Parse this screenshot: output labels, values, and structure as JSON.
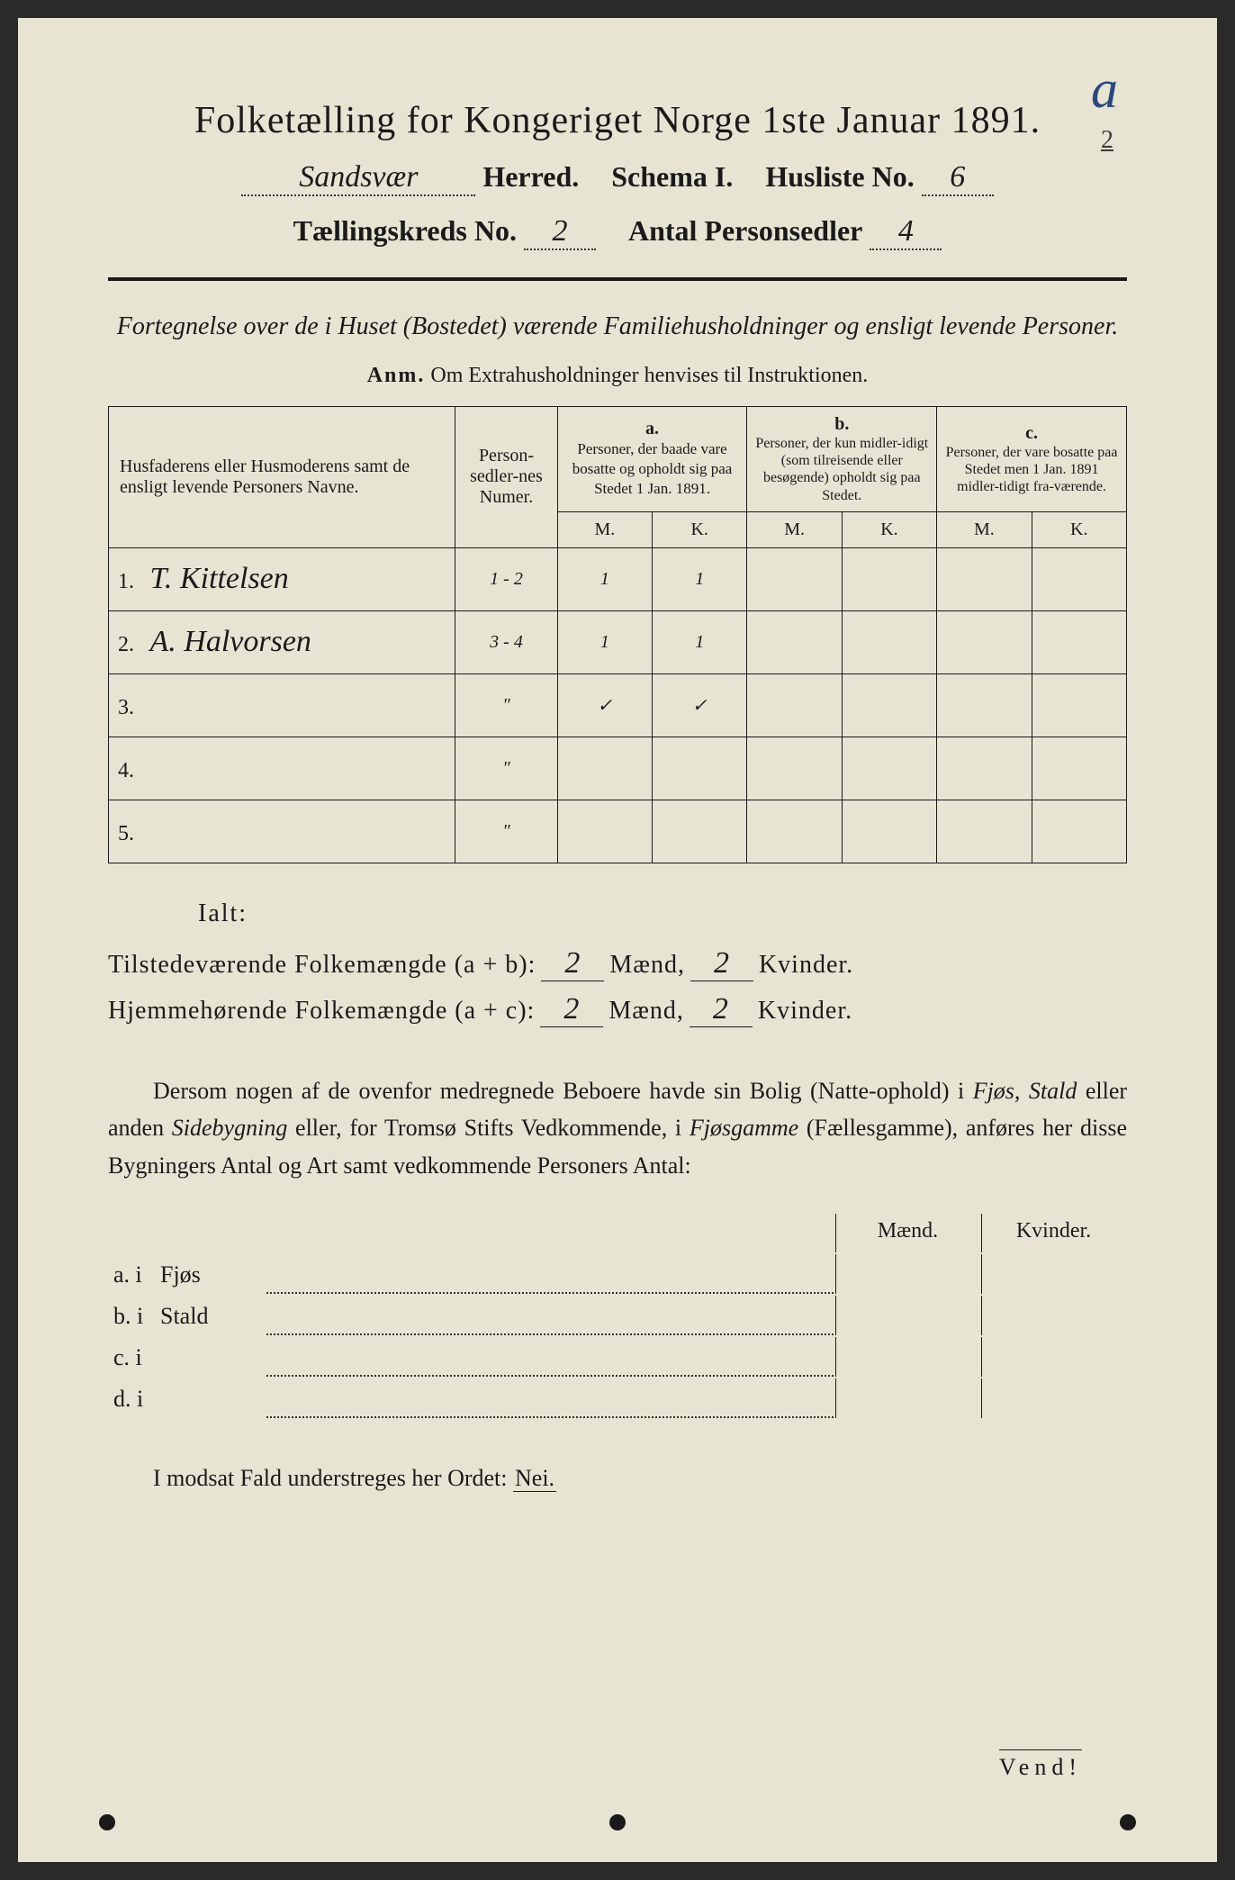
{
  "corner_mark": "a",
  "corner_sub": "2",
  "title": "Folketælling for Kongeriget Norge 1ste Januar 1891.",
  "header": {
    "herred_value": "Sandsvær",
    "herred_label": "Herred.",
    "schema_label": "Schema I.",
    "husliste_label": "Husliste No.",
    "husliste_value": "6",
    "kreds_label": "Tællingskreds No.",
    "kreds_value": "2",
    "antal_label": "Antal Personsedler",
    "antal_value": "4"
  },
  "subtitle": "Fortegnelse over de i Huset (Bostedet) værende Familiehusholdninger og ensligt levende Personer.",
  "anm_label": "Anm.",
  "anm_text": "Om Extrahusholdninger henvises til Instruktionen.",
  "table": {
    "head_name": "Husfaderens eller Husmoderens samt de ensligt levende Personers Navne.",
    "head_num": "Person-sedler-nes Numer.",
    "head_a_label": "a.",
    "head_a": "Personer, der baade vare bosatte og opholdt sig paa Stedet 1 Jan. 1891.",
    "head_b_label": "b.",
    "head_b": "Personer, der kun midler-idigt (som tilreisende eller besøgende) opholdt sig paa Stedet.",
    "head_c_label": "c.",
    "head_c": "Personer, der vare bosatte paa Stedet men 1 Jan. 1891 midler-tidigt fra-værende.",
    "m": "M.",
    "k": "K.",
    "rows": [
      {
        "n": "1.",
        "name": "T. Kittelsen",
        "num": "1 - 2",
        "a_m": "1",
        "a_k": "1",
        "b_m": "",
        "b_k": "",
        "c_m": "",
        "c_k": ""
      },
      {
        "n": "2.",
        "name": "A. Halvorsen",
        "num": "3 - 4",
        "a_m": "1",
        "a_k": "1",
        "b_m": "",
        "b_k": "",
        "c_m": "",
        "c_k": ""
      },
      {
        "n": "3.",
        "name": "",
        "num": "\"",
        "a_m": "✓",
        "a_k": "✓",
        "b_m": "",
        "b_k": "",
        "c_m": "",
        "c_k": ""
      },
      {
        "n": "4.",
        "name": "",
        "num": "\"",
        "a_m": "",
        "a_k": "",
        "b_m": "",
        "b_k": "",
        "c_m": "",
        "c_k": ""
      },
      {
        "n": "5.",
        "name": "",
        "num": "\"",
        "a_m": "",
        "a_k": "",
        "b_m": "",
        "b_k": "",
        "c_m": "",
        "c_k": ""
      }
    ]
  },
  "ialt": "Ialt:",
  "summary": {
    "line1_a": "Tilstedeværende Folkemængde (a + b):",
    "line1_m": "2",
    "line1_mlabel": "Mænd,",
    "line1_k": "2",
    "line1_klabel": "Kvinder.",
    "line2_a": "Hjemmehørende Folkemængde (a + c):",
    "line2_m": "2",
    "line2_k": "2"
  },
  "paragraph": {
    "p1": "Dersom nogen af de ovenfor medregnede Beboere havde sin Bolig (Natte-ophold) i ",
    "p2": "Fjøs, Stald",
    "p3": " eller anden ",
    "p4": "Sidebygning",
    "p5": " eller, for Tromsø Stifts Vedkommende, i ",
    "p6": "Fjøsgamme",
    "p7": " (Fællesgamme), anføres her disse Bygningers Antal og Art samt vedkommende Personers Antal:"
  },
  "subtable": {
    "maend": "Mænd.",
    "kvinder": "Kvinder.",
    "rows": [
      {
        "lead": "a.  i",
        "loc": "Fjøs"
      },
      {
        "lead": "b.  i",
        "loc": "Stald"
      },
      {
        "lead": "c.  i",
        "loc": ""
      },
      {
        "lead": "d.  i",
        "loc": ""
      }
    ]
  },
  "final_a": "I modsat Fald understreges her Ordet: ",
  "final_nei": "Nei.",
  "vend": "Vend!"
}
